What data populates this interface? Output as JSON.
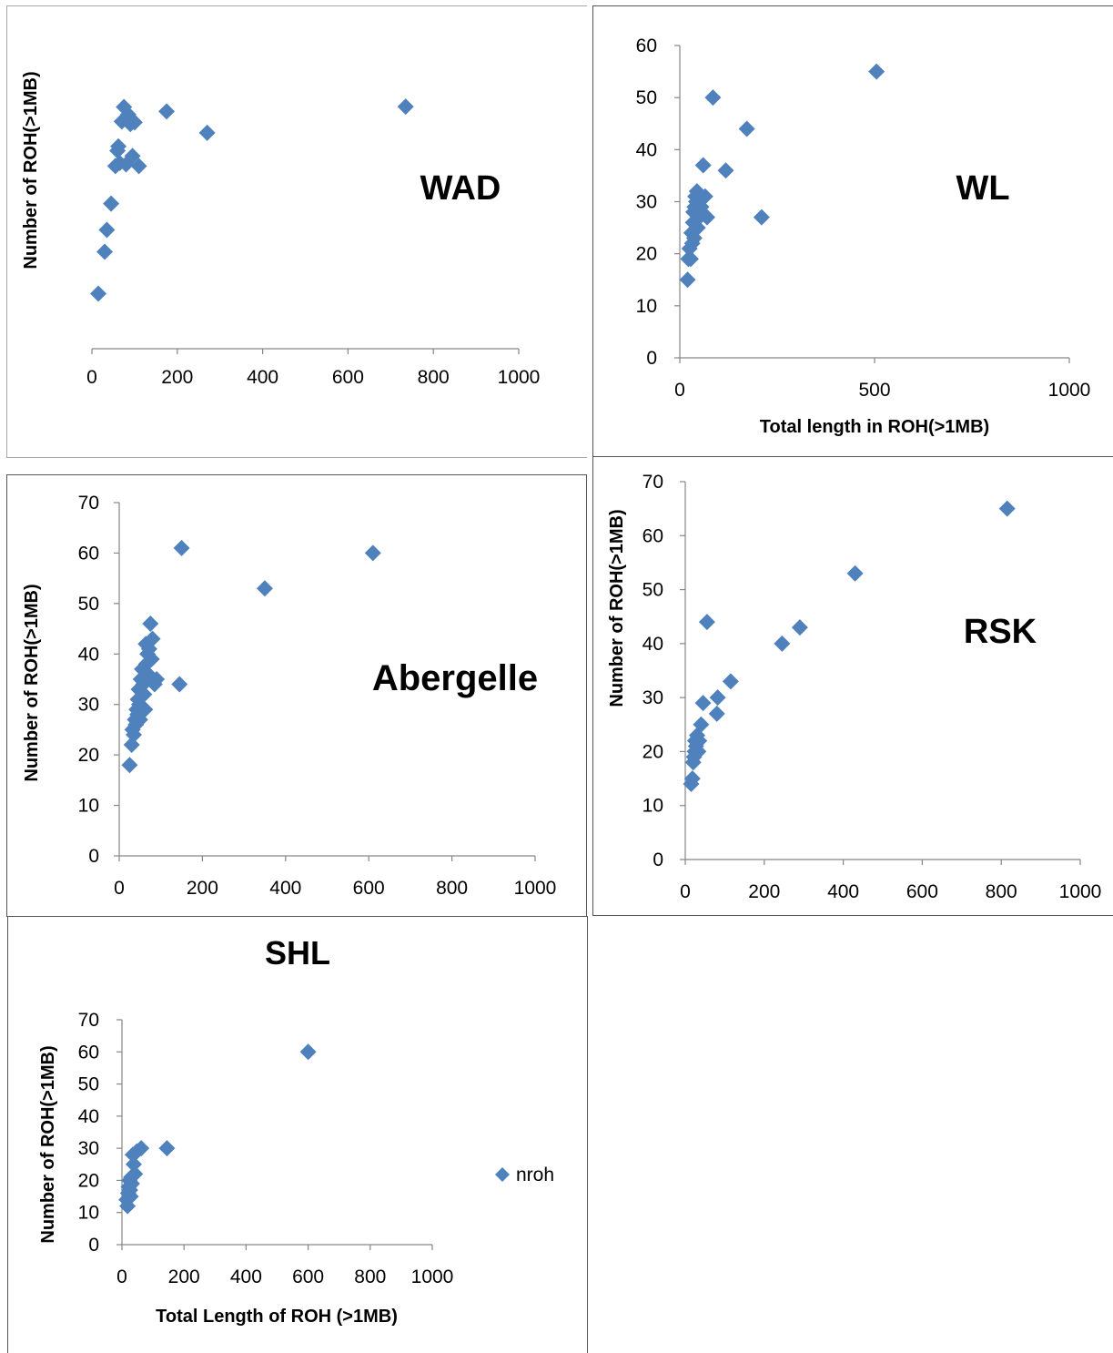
{
  "chart_data": [
    {
      "type": "scatter",
      "title": "WAD",
      "xlabel": "",
      "ylabel": "Number of ROH(>1MB)",
      "xlim": [
        0,
        1000
      ],
      "ylim": [
        0,
        60
      ],
      "xticks": [
        "0",
        "200",
        "400",
        "600",
        "800",
        "1000"
      ],
      "yticks": [],
      "x_axis_visible": true,
      "y_axis_visible": false,
      "series": [
        {
          "color": "#4f81bd",
          "x": [
            15,
            30,
            35,
            45,
            55,
            60,
            62,
            65,
            70,
            75,
            80,
            85,
            90,
            95,
            100,
            110,
            175,
            270,
            735
          ],
          "y": [
            12.6,
            22.2,
            27.2,
            33.2,
            41.8,
            45.3,
            46.3,
            42.5,
            52.0,
            55.3,
            42.2,
            53.6,
            51.4,
            44.1,
            51.8,
            41.8,
            54.3,
            49.4,
            55.4
          ]
        }
      ],
      "grid": false,
      "legend": "none"
    },
    {
      "type": "scatter",
      "title": "WL",
      "xlabel": "Total length in ROH(>1MB)",
      "ylabel": "",
      "xlim": [
        0,
        1000
      ],
      "ylim": [
        0,
        60
      ],
      "xticks": [
        "0",
        "500",
        "1000"
      ],
      "yticks": [
        "0",
        "10",
        "20",
        "30",
        "40",
        "50",
        "60"
      ],
      "series": [
        {
          "color": "#4f81bd",
          "x": [
            20,
            22,
            25,
            28,
            30,
            32,
            34,
            35,
            37,
            38,
            40,
            42,
            44,
            46,
            50,
            55,
            60,
            65,
            70,
            85,
            118,
            172,
            210,
            505
          ],
          "y": [
            15,
            19,
            21,
            19,
            24,
            22,
            26,
            28,
            23,
            29,
            31,
            30,
            32,
            25,
            27,
            29,
            37,
            31,
            27,
            50,
            36,
            44,
            27,
            55
          ]
        }
      ],
      "grid": false,
      "legend": "none"
    },
    {
      "type": "scatter",
      "title": "Abergelle",
      "xlabel": "",
      "ylabel": "Number of ROH(>1MB)",
      "xlim": [
        0,
        1000
      ],
      "ylim": [
        0,
        70
      ],
      "xticks": [
        "0",
        "200",
        "400",
        "600",
        "800",
        "1000"
      ],
      "yticks": [
        "0",
        "10",
        "20",
        "30",
        "40",
        "50",
        "60",
        "70"
      ],
      "series": [
        {
          "color": "#4f81bd",
          "x": [
            25,
            30,
            32,
            35,
            38,
            40,
            42,
            44,
            45,
            47,
            48,
            50,
            52,
            55,
            58,
            60,
            62,
            64,
            65,
            68,
            70,
            72,
            75,
            78,
            80,
            85,
            90,
            145,
            150,
            350,
            610
          ],
          "y": [
            18,
            22,
            25,
            24,
            27,
            26,
            29,
            28,
            31,
            33,
            30,
            27,
            35,
            37,
            34,
            32,
            29,
            42,
            38,
            40,
            36,
            41,
            46,
            39,
            43,
            34,
            35,
            34,
            61,
            53,
            60
          ]
        }
      ],
      "grid": false,
      "legend": "none"
    },
    {
      "type": "scatter",
      "title": "RSK",
      "xlabel": "",
      "ylabel": "Number of ROH(>1MB)",
      "xlim": [
        0,
        1000
      ],
      "ylim": [
        0,
        70
      ],
      "xticks": [
        "0",
        "200",
        "400",
        "600",
        "800",
        "1000"
      ],
      "yticks": [
        "0",
        "10",
        "20",
        "30",
        "40",
        "50",
        "60",
        "70"
      ],
      "series": [
        {
          "color": "#4f81bd",
          "x": [
            15,
            18,
            20,
            22,
            24,
            25,
            27,
            30,
            33,
            35,
            40,
            45,
            55,
            80,
            82,
            115,
            245,
            290,
            430,
            815
          ],
          "y": [
            14,
            15,
            18,
            19,
            20,
            22,
            21,
            23,
            20,
            22,
            25,
            29,
            44,
            27,
            30,
            33,
            40,
            43,
            53,
            65
          ]
        }
      ],
      "grid": false,
      "legend": "none"
    },
    {
      "type": "scatter",
      "title": "SHL",
      "xlabel": "Total Length of ROH (>1MB)",
      "ylabel": "Number of ROH(>1MB)",
      "xlim": [
        0,
        1000
      ],
      "ylim": [
        0,
        70
      ],
      "xticks": [
        "0",
        "200",
        "400",
        "600",
        "800",
        "1000"
      ],
      "yticks": [
        "0",
        "10",
        "20",
        "30",
        "40",
        "50",
        "60",
        "70"
      ],
      "series": [
        {
          "name": "nroh",
          "color": "#4f81bd",
          "x": [
            15,
            18,
            20,
            22,
            24,
            26,
            28,
            30,
            32,
            35,
            38,
            42,
            48,
            62,
            145,
            600
          ],
          "y": [
            14,
            12,
            16,
            18,
            20,
            17,
            15,
            21,
            19,
            28,
            25,
            22,
            29,
            30,
            30,
            60
          ]
        }
      ],
      "grid": false,
      "legend": "right"
    }
  ]
}
